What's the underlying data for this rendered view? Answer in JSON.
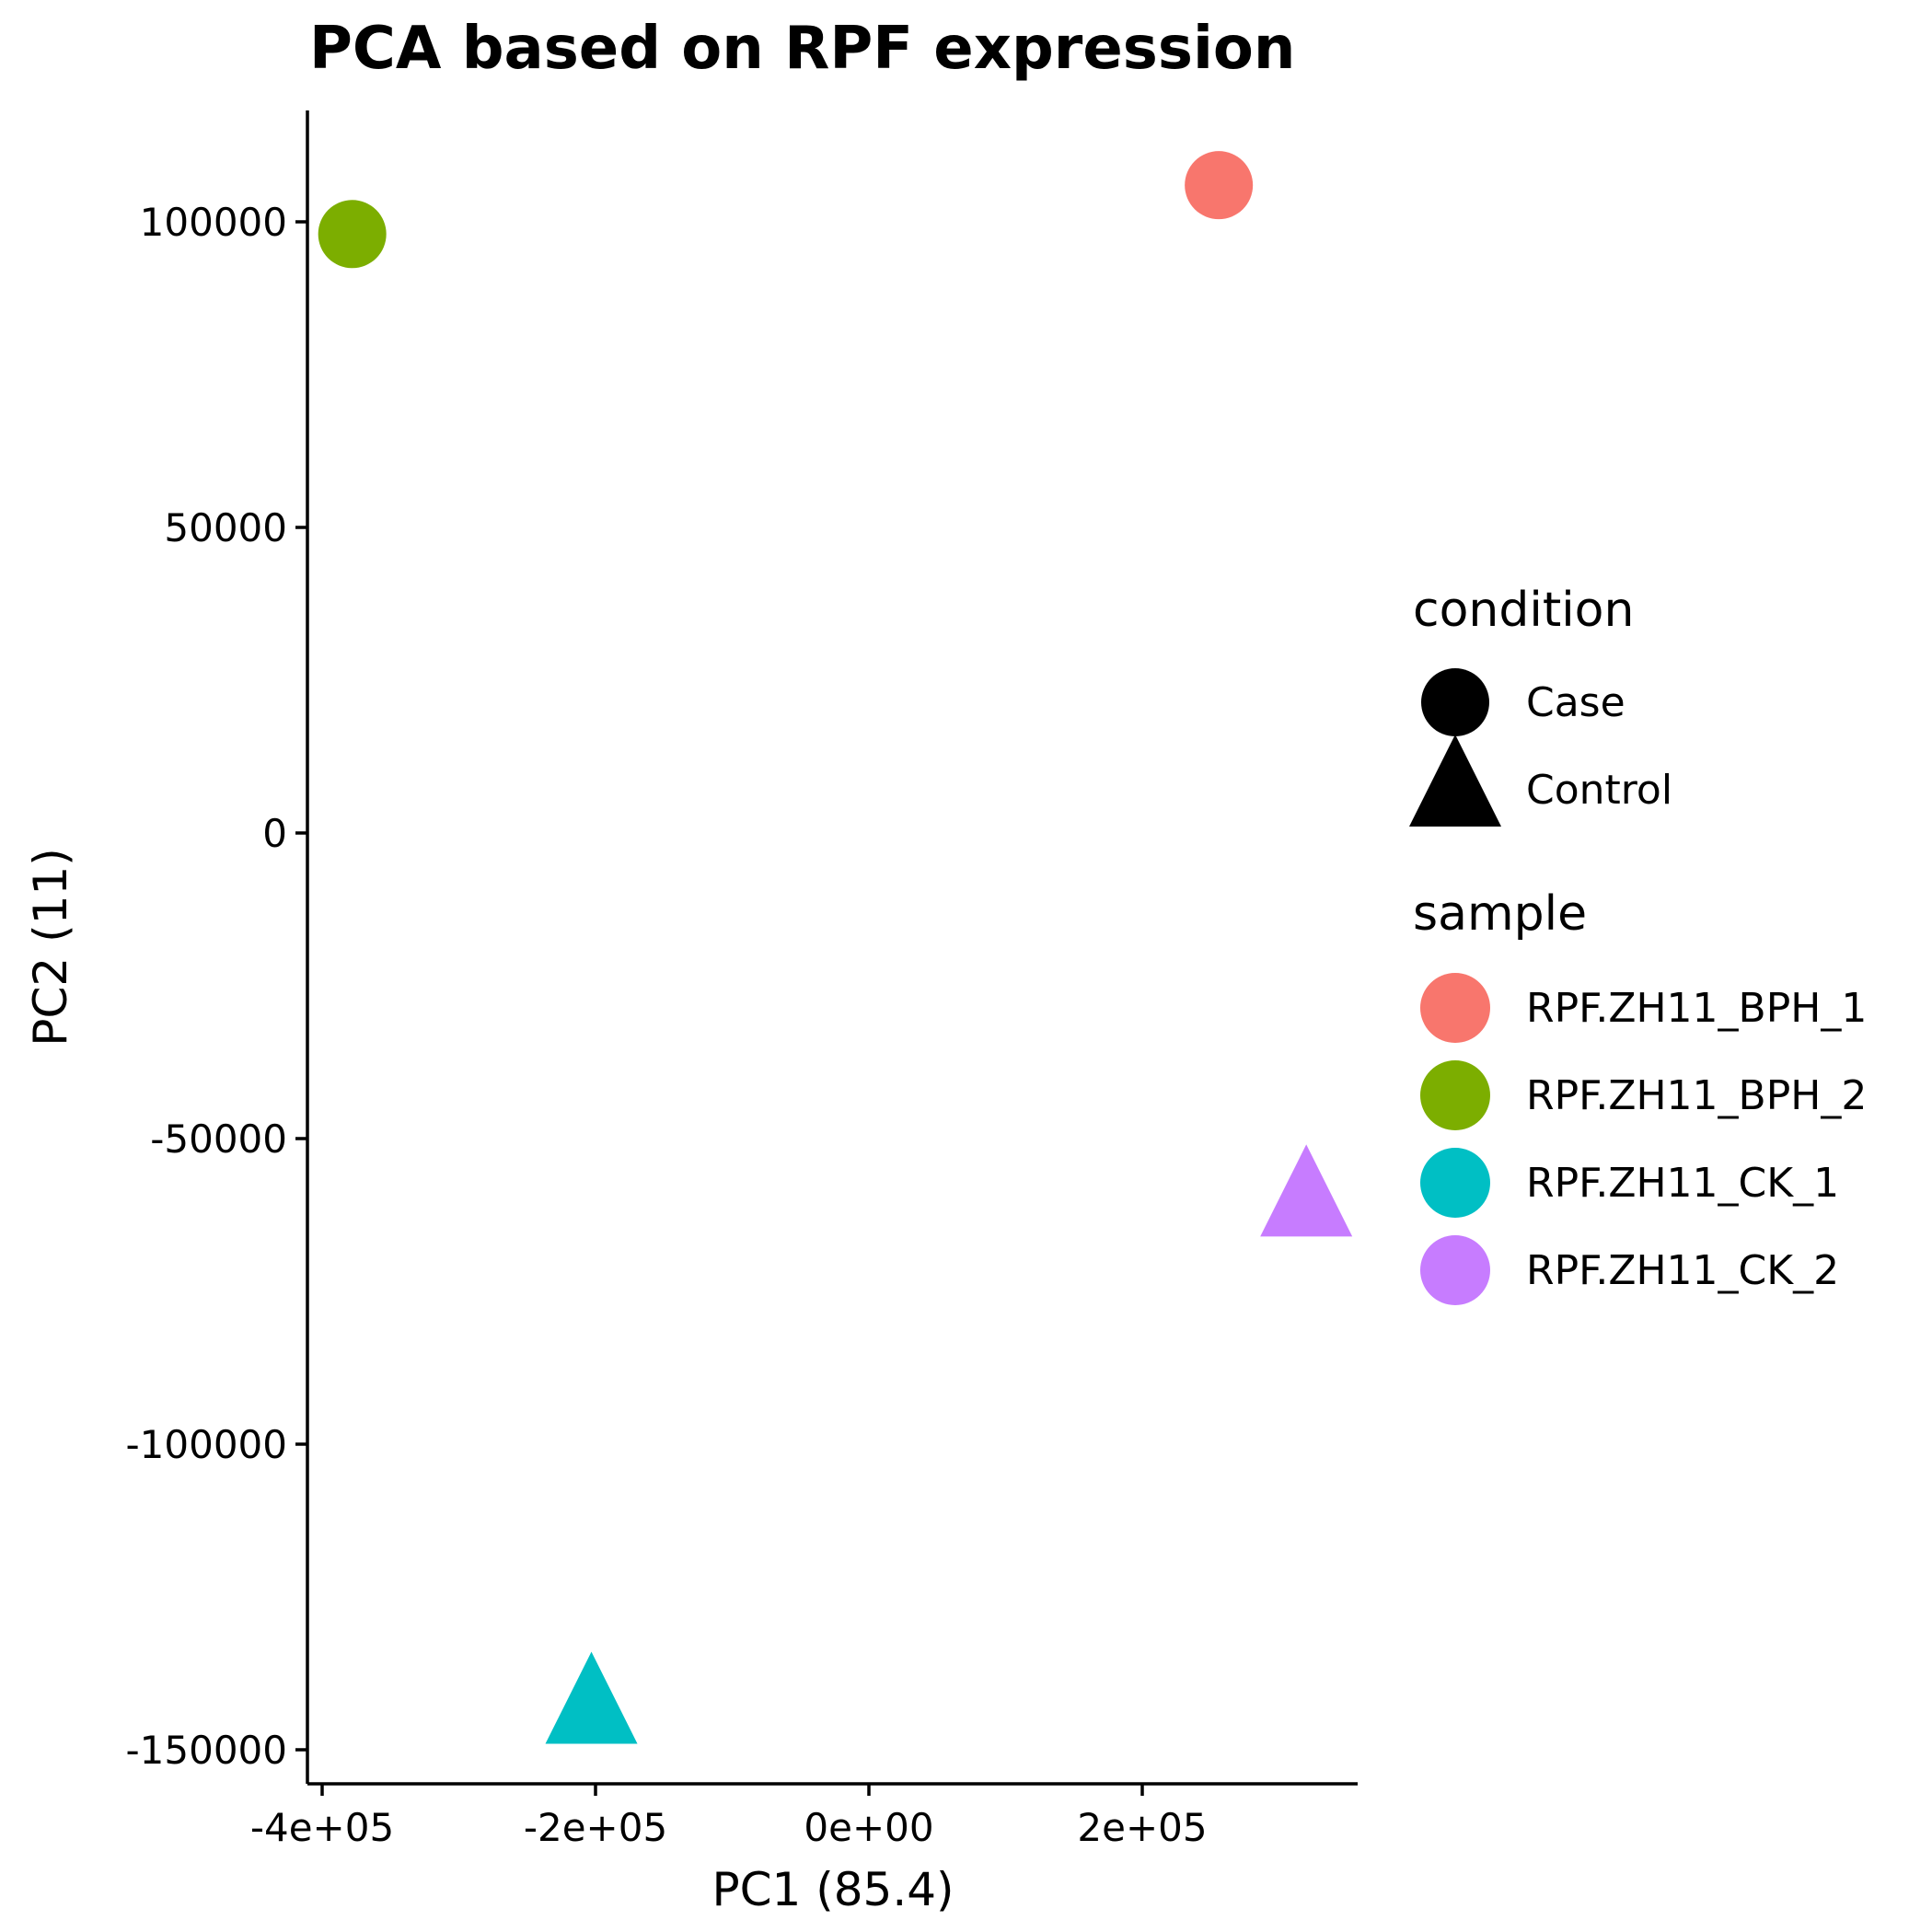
{
  "chart_data": {
    "type": "scatter",
    "title": "PCA based on RPF expression",
    "xlabel": "PC1 (85.4)",
    "ylabel": "PC2 (11)",
    "xlim": [
      -410000,
      355000
    ],
    "ylim": [
      -155000,
      118000
    ],
    "x_ticks": [
      -400000,
      -200000,
      0,
      200000
    ],
    "x_tick_labels": [
      "-4e+05",
      "-2e+05",
      "0e+00",
      "2e+05"
    ],
    "y_ticks": [
      100000,
      50000,
      0,
      -50000,
      -100000,
      -150000
    ],
    "y_tick_labels": [
      "100000",
      "50000",
      "0",
      "-50000",
      "-100000",
      "-150000"
    ],
    "grid": false,
    "legend_placement": "right",
    "points": [
      {
        "sample": "RPF.ZH11_BPH_1",
        "condition": "Case",
        "x": 256000,
        "y": 106000
      },
      {
        "sample": "RPF.ZH11_BPH_2",
        "condition": "Case",
        "x": -378000,
        "y": 98000
      },
      {
        "sample": "RPF.ZH11_CK_1",
        "condition": "Control",
        "x": -203000,
        "y": -143000
      },
      {
        "sample": "RPF.ZH11_CK_2",
        "condition": "Control",
        "x": 320000,
        "y": -60000
      }
    ],
    "legend": {
      "condition": {
        "title": "condition",
        "items": [
          {
            "label": "Case",
            "shape": "circle"
          },
          {
            "label": "Control",
            "shape": "triangle"
          }
        ]
      },
      "sample": {
        "title": "sample",
        "items": [
          {
            "label": "RPF.ZH11_BPH_1",
            "color": "#F8766D"
          },
          {
            "label": "RPF.ZH11_BPH_2",
            "color": "#7CAE00"
          },
          {
            "label": "RPF.ZH11_CK_1",
            "color": "#00BFC4"
          },
          {
            "label": "RPF.ZH11_CK_2",
            "color": "#C77CFF"
          }
        ]
      }
    }
  }
}
